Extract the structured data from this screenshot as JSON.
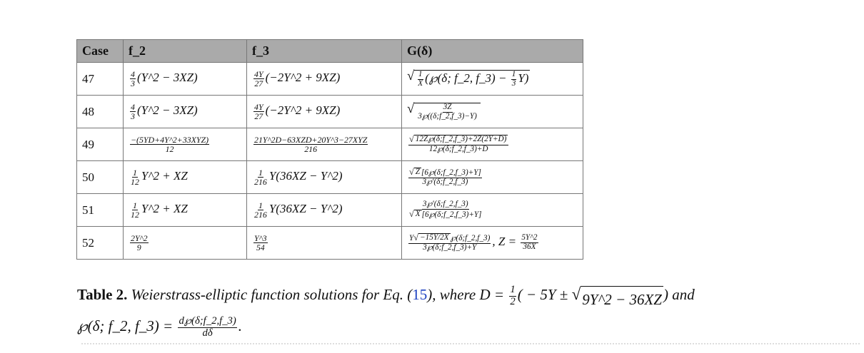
{
  "table": {
    "headers": [
      "Case",
      "f_2",
      "f_3",
      "G(δ)"
    ],
    "header_bg": "#aaaaaa",
    "rows": [
      {
        "case": "47",
        "f2": [
          {
            "f": [
              "4",
              "3"
            ]
          },
          "(Y^2 − 3XZ)"
        ],
        "f3": [
          {
            "f": [
              "4Y",
              "27"
            ]
          },
          "(−2Y^2 + 9XZ)"
        ],
        "g": [
          {
            "r": [
              {
                "f": [
                  "1",
                  "X"
                ]
              },
              "(℘(δ; f_2, f_3) − ",
              {
                "f": [
                  "1",
                  "3"
                ]
              },
              "Y)"
            ]
          }
        ]
      },
      {
        "case": "48",
        "f2": [
          {
            "f": [
              "4",
              "3"
            ]
          },
          "(Y^2 − 3XZ)"
        ],
        "f3": [
          {
            "f": [
              "4Y",
              "27"
            ]
          },
          "(−2Y^2 + 9XZ)"
        ],
        "g": [
          {
            "r": [
              {
                "f": [
                  "3Z",
                  "3℘((δ;f_2,f_3)−Y)"
                ]
              }
            ]
          }
        ]
      },
      {
        "case": "49",
        "f2": [
          {
            "f": [
              "−(5YD+4Y^2+33XYZ)",
              "12"
            ]
          }
        ],
        "f3": [
          {
            "f": [
              "21Y^2D−63XZD+20Y^3−27XYZ",
              "216"
            ]
          }
        ],
        "g": [
          {
            "f": [
              [
                {
                  "r": [
                    "12Z℘(δ;f_2,f_3)+2Z(2Y+D)"
                  ]
                }
              ],
              "12℘(δ;f_2,f_3)+D"
            ]
          }
        ]
      },
      {
        "case": "50",
        "f2": [
          {
            "f": [
              "1",
              "12"
            ]
          },
          "Y^2 + XZ"
        ],
        "f3": [
          {
            "f": [
              "1",
              "216"
            ]
          },
          "Y(36XZ − Y^2)"
        ],
        "g": [
          {
            "f": [
              [
                {
                  "r": [
                    "Z"
                  ]
                },
                "[6℘(δ;f_2,f_3)+Y]"
              ],
              "3℘′(δ;f_2,f_3)"
            ]
          }
        ]
      },
      {
        "case": "51",
        "f2": [
          {
            "f": [
              "1",
              "12"
            ]
          },
          "Y^2 + XZ"
        ],
        "f3": [
          {
            "f": [
              "1",
              "216"
            ]
          },
          "Y(36XZ − Y^2)"
        ],
        "g": [
          {
            "f": [
              "3℘′(δ;f_2,f_3)",
              [
                {
                  "r": [
                    "X"
                  ]
                },
                "[6℘(δ;f_2,f_3)+Y]"
              ]
            ]
          }
        ]
      },
      {
        "case": "52",
        "f2": [
          {
            "f": [
              "2Y^2",
              "9"
            ]
          }
        ],
        "f3": [
          {
            "f": [
              "Y^3",
              "54"
            ]
          }
        ],
        "g": [
          {
            "f": [
              [
                "Y",
                {
                  "r": [
                    "−15Y/2X"
                  ]
                },
                "℘(δ;f_2,f_3)"
              ],
              "3℘(δ;f_2,f_3)+Y"
            ]
          },
          ",  Z = ",
          {
            "f": [
              "5Y^2",
              "36X"
            ]
          }
        ]
      }
    ]
  },
  "caption": {
    "label": "Table 2.",
    "line1": [
      "  Weierstrass-elliptic function solutions for Eq. (",
      {
        "link": "15"
      },
      "), where D = ",
      {
        "f": [
          "1",
          "2"
        ]
      },
      "( − 5Y ± ",
      {
        "r": [
          "9Y^2 − 36XZ"
        ]
      },
      ") and"
    ],
    "line2": [
      "℘(δ; f_2, f_3) = ",
      {
        "f": [
          "d℘(δ;f_2,f_3)",
          "dδ"
        ]
      },
      "."
    ],
    "link_color": "#1a3fc0"
  }
}
